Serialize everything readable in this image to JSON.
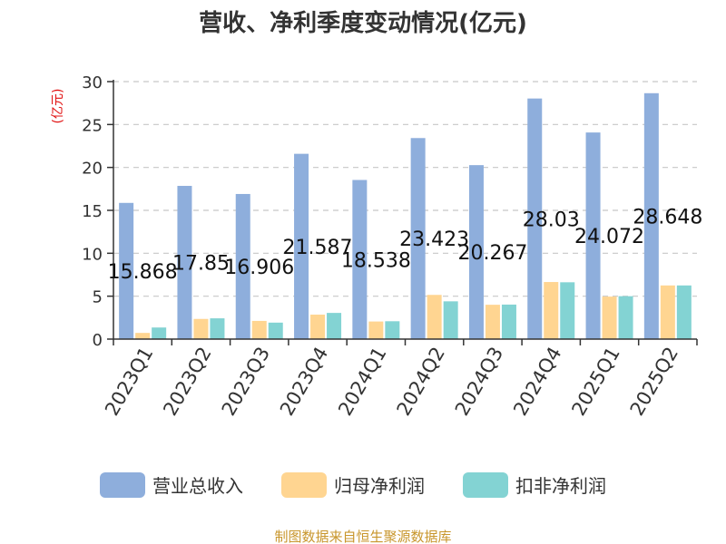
{
  "chart_data": {
    "type": "bar",
    "title": "营收、净利季度变动情况(亿元)",
    "unit_label": "(亿元)",
    "categories": [
      "2023Q1",
      "2023Q2",
      "2023Q3",
      "2023Q4",
      "2024Q1",
      "2024Q2",
      "2024Q3",
      "2024Q4",
      "2025Q1",
      "2025Q2"
    ],
    "series": [
      {
        "name": "营业总收入",
        "color": "#8eaedc",
        "values": [
          15.868,
          17.85,
          16.906,
          21.587,
          18.538,
          23.423,
          20.267,
          28.03,
          24.072,
          28.648
        ]
      },
      {
        "name": "归母净利润",
        "color": "#ffd591",
        "values": [
          0.72,
          2.35,
          2.12,
          2.85,
          2.05,
          5.15,
          4.0,
          6.65,
          4.95,
          6.25
        ]
      },
      {
        "name": "扣非净利润",
        "color": "#83d3d3",
        "values": [
          1.35,
          2.42,
          1.92,
          3.05,
          2.08,
          4.4,
          4.02,
          6.62,
          5.0,
          6.25
        ]
      }
    ],
    "data_labels": [
      "15.868",
      "17.85",
      "16.906",
      "21.587",
      "18.538",
      "23.423",
      "20.267",
      "28.03",
      "24.072",
      "28.648"
    ],
    "ylim": [
      0,
      30
    ],
    "yticks": [
      0,
      5,
      10,
      15,
      20,
      25,
      30
    ],
    "grid": true,
    "legend_position": "bottom"
  },
  "source": "制图数据来自恒生聚源数据库"
}
